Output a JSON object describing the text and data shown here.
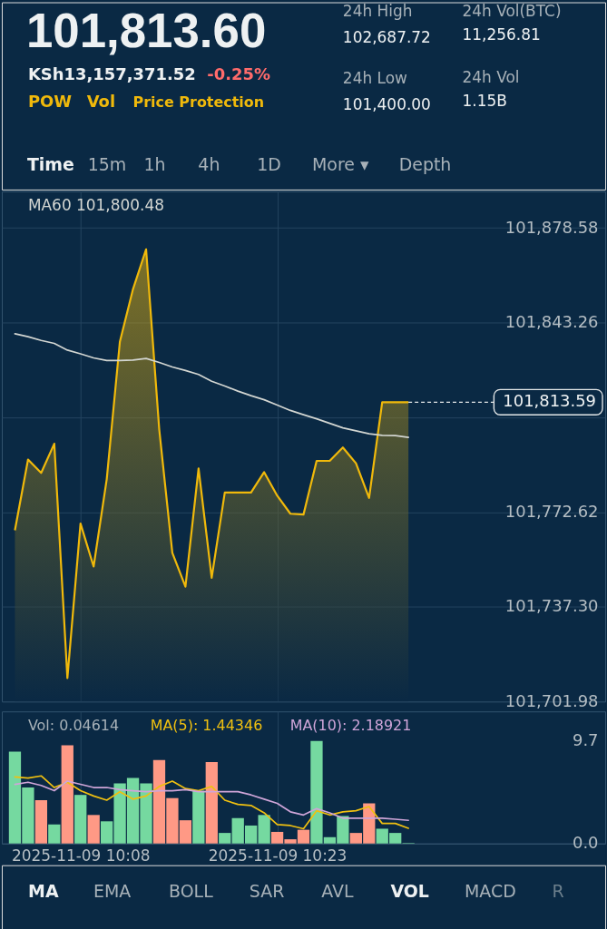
{
  "chart_data": [
    {
      "type": "other",
      "annotations": [
        "101,813.60",
        "KSh13,157,371.52",
        "-0.25%",
        "POW",
        "Vol",
        "Price Protection",
        "24h High",
        "102,687.72",
        "24h Low",
        "101,400.00",
        "24h Vol(BTC)",
        "11,256.81",
        "24h Vol",
        "1.15B",
        "Time",
        "15m",
        "1h",
        "4h",
        "1D",
        "More ▾",
        "Depth"
      ]
    },
    {
      "type": "area",
      "x": [
        "2025-11-09T10:03",
        "2025-11-09T10:04",
        "2025-11-09T10:05",
        "2025-11-09T10:06",
        "2025-11-09T10:07",
        "2025-11-09T10:08",
        "2025-11-09T10:09",
        "2025-11-09T10:10",
        "2025-11-09T10:11",
        "2025-11-09T10:12",
        "2025-11-09T10:13",
        "2025-11-09T10:14",
        "2025-11-09T10:15",
        "2025-11-09T10:16",
        "2025-11-09T10:17",
        "2025-11-09T10:18",
        "2025-11-09T10:19",
        "2025-11-09T10:20",
        "2025-11-09T10:21",
        "2025-11-09T10:22",
        "2025-11-09T10:23",
        "2025-11-09T10:24",
        "2025-11-09T10:25",
        "2025-11-09T10:26",
        "2025-11-09T10:27",
        "2025-11-09T10:28",
        "2025-11-09T10:29",
        "2025-11-09T10:30",
        "2025-11-09T10:31",
        "2025-11-09T10:32",
        "2025-11-09T10:33"
      ],
      "xlim": [
        "2025-11-09T10:02",
        "2025-11-09T10:48"
      ],
      "xticks": [
        {
          "value": "2025-11-09T10:08",
          "label": null
        },
        {
          "value": "2025-11-09T10:23",
          "label": null
        }
      ],
      "ylim": [
        101701.98,
        101892.2
      ],
      "yticks": [
        {
          "value": 101701.98,
          "label": "101,701.98"
        },
        {
          "value": 101737.3,
          "label": "101,737.30"
        },
        {
          "value": 101772.62,
          "label": "101,772.62"
        },
        {
          "value": 101807.94,
          "label": null
        },
        {
          "value": 101843.26,
          "label": "101,843.26"
        },
        {
          "value": 101878.58,
          "label": "101,878.58"
        }
      ],
      "grid": true,
      "tick_labels": "y",
      "series": [
        {
          "type": "area",
          "color": "#f0b90b",
          "values": [
            101765.8,
            101792.2,
            101787.2,
            101798.1,
            101710.7,
            101768.3,
            101752.3,
            101784.9,
            101836.1,
            101855.7,
            101870.6,
            101803.5,
            101757.4,
            101744.8,
            101788.9,
            101748.1,
            101779.9,
            101779.9,
            101779.9,
            101787.5,
            101778.7,
            101772.0,
            101771.7,
            101791.7,
            101791.7,
            101796.7,
            101790.8,
            101777.9,
            101813.59,
            101813.59,
            101813.59
          ]
        },
        {
          "type": "line",
          "name": "MA60 101,800.48",
          "color": "#d3d6d2",
          "values": [
            101839.1,
            101838.0,
            101836.6,
            101835.5,
            101833.0,
            101831.6,
            101830.1,
            101829.1,
            101829.1,
            101829.3,
            101829.9,
            101828.4,
            101826.7,
            101825.4,
            101823.9,
            101821.4,
            101819.6,
            101817.7,
            101816.0,
            101814.5,
            101812.5,
            101810.5,
            101808.9,
            101807.4,
            101805.7,
            101804.0,
            101802.9,
            101801.8,
            101801.2,
            101801.1,
            101800.48
          ]
        }
      ],
      "ref_lines": [
        {
          "axis": "y",
          "value": 101813.59,
          "label": "101,813.59",
          "line_style": "dashed",
          "color": "#e4e7e8"
        }
      ]
    },
    {
      "type": "bar",
      "x": [
        "2025-11-09T10:03",
        "2025-11-09T10:04",
        "2025-11-09T10:05",
        "2025-11-09T10:06",
        "2025-11-09T10:07",
        "2025-11-09T10:08",
        "2025-11-09T10:09",
        "2025-11-09T10:10",
        "2025-11-09T10:11",
        "2025-11-09T10:12",
        "2025-11-09T10:13",
        "2025-11-09T10:14",
        "2025-11-09T10:15",
        "2025-11-09T10:16",
        "2025-11-09T10:17",
        "2025-11-09T10:18",
        "2025-11-09T10:19",
        "2025-11-09T10:20",
        "2025-11-09T10:21",
        "2025-11-09T10:22",
        "2025-11-09T10:23",
        "2025-11-09T10:24",
        "2025-11-09T10:25",
        "2025-11-09T10:26",
        "2025-11-09T10:27",
        "2025-11-09T10:28",
        "2025-11-09T10:29",
        "2025-11-09T10:30",
        "2025-11-09T10:31",
        "2025-11-09T10:32",
        "2025-11-09T10:33"
      ],
      "xlim": [
        "2025-11-09T10:02",
        "2025-11-09T10:48"
      ],
      "xticks": [
        {
          "value": "2025-11-09T10:08",
          "label": "2025-11-09 10:08"
        },
        {
          "value": "2025-11-09T10:23",
          "label": "2025-11-09 10:23"
        }
      ],
      "ylim": [
        0,
        12.5
      ],
      "yticks": [
        {
          "value": 0,
          "label": "0.0"
        },
        {
          "value": 9.7,
          "label": "9.7"
        }
      ],
      "grid": "x",
      "annotations": [
        "Vol: 0.04614"
      ],
      "series": [
        {
          "type": "bar",
          "colors": [
            "#75d9a0",
            "#75d9a0",
            "#ff9985",
            "#75d9a0",
            "#ff9985",
            "#75d9a0",
            "#ff9985",
            "#75d9a0",
            "#75d9a0",
            "#75d9a0",
            "#75d9a0",
            "#ff9985",
            "#ff9985",
            "#ff9985",
            "#75d9a0",
            "#ff9985",
            "#75d9a0",
            "#75d9a0",
            "#75d9a0",
            "#75d9a0",
            "#ff9985",
            "#ff9985",
            "#ff9985",
            "#75d9a0",
            "#75d9a0",
            "#75d9a0",
            "#ff9985",
            "#ff9985",
            "#75d9a0",
            "#75d9a0",
            "#75d9a0"
          ],
          "values": [
            8.7,
            5.3,
            4.1,
            1.8,
            9.3,
            4.6,
            2.7,
            2.1,
            5.7,
            6.2,
            5.7,
            7.9,
            4.3,
            2.2,
            5.0,
            7.7,
            1.0,
            2.4,
            1.7,
            2.7,
            1.1,
            0.4,
            1.3,
            9.7,
            0.6,
            2.6,
            1.0,
            3.8,
            1.4,
            1.0,
            0.04614
          ]
        },
        {
          "type": "line",
          "name": "MA(5): 1.44346",
          "color": "#f0c010",
          "values": [
            6.3,
            6.2,
            6.4,
            5.3,
            5.8,
            5.0,
            4.5,
            4.1,
            4.9,
            4.2,
            4.5,
            5.4,
            5.9,
            5.2,
            5.0,
            5.4,
            4.1,
            3.7,
            3.6,
            2.9,
            1.8,
            1.7,
            1.4,
            3.1,
            2.7,
            3.0,
            3.1,
            3.5,
            1.9,
            1.9,
            1.44346
          ]
        },
        {
          "type": "line",
          "name": "MA(10): 2.18921",
          "color": "#cfa5d8",
          "values": [
            5.6,
            5.8,
            5.5,
            5.0,
            5.9,
            5.6,
            5.3,
            5.3,
            5.1,
            5.0,
            4.9,
            5.0,
            5.0,
            5.1,
            4.9,
            4.9,
            4.9,
            4.9,
            4.6,
            4.2,
            3.8,
            3.0,
            2.7,
            3.3,
            2.9,
            2.4,
            2.4,
            2.4,
            2.4,
            2.3,
            2.18921
          ]
        }
      ]
    },
    {
      "type": "other",
      "annotations": [
        "MA",
        "EMA",
        "BOLL",
        "SAR",
        "AVL",
        "VOL",
        "MACD",
        "R"
      ]
    }
  ]
}
